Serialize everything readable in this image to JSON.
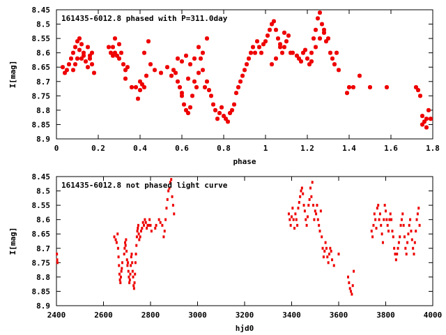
{
  "chart_data": [
    {
      "type": "scatter",
      "title": "161435-6012.8 phased with P=311.0day",
      "xlabel": "phase",
      "ylabel": "I[mag]",
      "xlim": [
        0,
        1.8
      ],
      "ylim": [
        8.9,
        8.45
      ],
      "xticks": [
        "0",
        "0.2",
        "0.4",
        "0.6",
        "0.8",
        "1",
        "1.2",
        "1.4",
        "1.6",
        "1.8"
      ],
      "yticks": [
        "8.45",
        "8.5",
        "8.55",
        "8.6",
        "8.65",
        "8.7",
        "8.75",
        "8.8",
        "8.85",
        "8.9"
      ],
      "marker": "star",
      "color": "#ee0000",
      "series": [
        {
          "x": [
            0.03,
            0.04,
            0.05,
            0.06,
            0.07,
            0.08,
            0.09,
            0.1,
            0.11,
            0.12,
            0.13,
            0.14,
            0.15,
            0.16,
            0.17,
            0.1,
            0.09,
            0.08,
            0.11,
            0.15,
            0.16,
            0.17,
            0.18,
            0.12,
            0.13,
            0.25,
            0.26,
            0.27,
            0.28,
            0.29,
            0.3,
            0.31,
            0.32,
            0.33,
            0.34,
            0.28,
            0.3,
            0.27,
            0.33,
            0.36,
            0.38,
            0.39,
            0.4,
            0.41,
            0.42,
            0.43,
            0.45,
            0.47,
            0.44,
            0.42,
            0.4,
            0.5,
            0.53,
            0.55,
            0.56,
            0.57,
            0.58,
            0.59,
            0.6,
            0.61,
            0.62,
            0.63,
            0.64,
            0.65,
            0.66,
            0.67,
            0.68,
            0.69,
            0.7,
            0.71,
            0.72,
            0.73,
            0.74,
            0.75,
            0.76,
            0.77,
            0.78,
            0.79,
            0.6,
            0.62,
            0.64,
            0.66,
            0.7,
            0.68,
            0.72,
            0.58,
            0.6,
            0.63,
            0.8,
            0.81,
            0.82,
            0.83,
            0.84,
            0.85,
            0.86,
            0.87,
            0.88,
            0.89,
            0.9,
            0.91,
            0.92,
            0.93,
            0.94,
            0.95,
            0.96,
            0.97,
            0.98,
            0.99,
            1.0,
            1.01,
            1.02,
            1.03,
            1.04,
            1.05,
            1.06,
            1.07,
            1.08,
            1.09,
            1.1,
            1.11,
            1.12,
            1.05,
            1.03,
            1.07,
            1.09,
            1.13,
            1.15,
            1.16,
            1.17,
            1.18,
            1.19,
            1.2,
            1.21,
            1.22,
            1.23,
            1.24,
            1.25,
            1.26,
            1.27,
            1.28,
            1.29,
            1.3,
            1.31,
            1.32,
            1.33,
            1.34,
            1.35,
            1.26,
            1.24,
            1.22,
            1.28,
            1.39,
            1.4,
            1.42,
            1.45,
            1.5,
            1.58,
            1.72,
            1.73,
            1.74,
            1.75,
            1.76,
            1.77,
            1.78,
            1.79,
            1.75,
            1.77
          ],
          "y": [
            8.65,
            8.67,
            8.66,
            8.64,
            8.62,
            8.6,
            8.58,
            8.56,
            8.55,
            8.57,
            8.6,
            8.63,
            8.65,
            8.62,
            8.6,
            8.62,
            8.64,
            8.66,
            8.59,
            8.58,
            8.61,
            8.64,
            8.67,
            8.62,
            8.61,
            8.58,
            8.6,
            8.58,
            8.6,
            8.61,
            8.62,
            8.6,
            8.64,
            8.66,
            8.65,
            8.55,
            8.57,
            8.61,
            8.69,
            8.72,
            8.72,
            8.76,
            8.73,
            8.71,
            8.72,
            8.68,
            8.64,
            8.66,
            8.56,
            8.6,
            8.7,
            8.67,
            8.65,
            8.68,
            8.66,
            8.67,
            8.7,
            8.72,
            8.75,
            8.78,
            8.8,
            8.81,
            8.79,
            8.75,
            8.7,
            8.72,
            8.67,
            8.62,
            8.66,
            8.72,
            8.7,
            8.73,
            8.75,
            8.78,
            8.8,
            8.83,
            8.81,
            8.79,
            8.63,
            8.61,
            8.64,
            8.62,
            8.6,
            8.58,
            8.55,
            8.62,
            8.74,
            8.69,
            8.82,
            8.83,
            8.84,
            8.81,
            8.8,
            8.78,
            8.74,
            8.72,
            8.7,
            8.68,
            8.66,
            8.64,
            8.62,
            8.6,
            8.58,
            8.6,
            8.56,
            8.58,
            8.6,
            8.57,
            8.56,
            8.54,
            8.52,
            8.5,
            8.49,
            8.52,
            8.55,
            8.58,
            8.6,
            8.58,
            8.56,
            8.54,
            8.6,
            8.62,
            8.64,
            8.57,
            8.53,
            8.6,
            8.61,
            8.62,
            8.63,
            8.6,
            8.59,
            8.62,
            8.64,
            8.63,
            8.55,
            8.52,
            8.48,
            8.46,
            8.5,
            8.53,
            8.56,
            8.55,
            8.6,
            8.62,
            8.64,
            8.6,
            8.66,
            8.55,
            8.58,
            8.6,
            8.52,
            8.74,
            8.72,
            8.72,
            8.68,
            8.72,
            8.72,
            8.72,
            8.73,
            8.75,
            8.82,
            8.84,
            8.86,
            8.8,
            8.83,
            8.85,
            8.83
          ]
        }
      ]
    },
    {
      "type": "scatter",
      "title": "161435-6012.8 not phased light curve",
      "xlabel": "hjd0",
      "ylabel": "I[mag]",
      "xlim": [
        2400,
        4000
      ],
      "ylim": [
        8.9,
        8.45
      ],
      "xticks": [
        "2400",
        "2600",
        "2800",
        "3000",
        "3200",
        "3400",
        "3600",
        "3800",
        "4000"
      ],
      "yticks": [
        "8.45",
        "8.5",
        "8.55",
        "8.6",
        "8.65",
        "8.7",
        "8.75",
        "8.8",
        "8.85",
        "8.9"
      ],
      "marker": "dot",
      "color": "#ee0000",
      "series": [
        {
          "x": [
            2402,
            2403,
            2404,
            2646,
            2652,
            2656,
            2660,
            2662,
            2664,
            2666,
            2668,
            2670,
            2672,
            2674,
            2676,
            2678,
            2680,
            2688,
            2690,
            2692,
            2694,
            2696,
            2698,
            2700,
            2702,
            2704,
            2706,
            2708,
            2710,
            2712,
            2714,
            2716,
            2718,
            2720,
            2722,
            2724,
            2726,
            2728,
            2730,
            2732,
            2734,
            2736,
            2738,
            2740,
            2742,
            2744,
            2746,
            2748,
            2750,
            2752,
            2756,
            2760,
            2764,
            2768,
            2772,
            2776,
            2780,
            2784,
            2788,
            2792,
            2796,
            2800,
            2804,
            2820,
            2824,
            2836,
            2842,
            2850,
            2856,
            2860,
            2864,
            2868,
            2872,
            2876,
            2880,
            2884,
            2888,
            2892,
            2896,
            2900,
            3388,
            3392,
            3396,
            3400,
            3404,
            3408,
            3412,
            3416,
            3420,
            3424,
            3428,
            3432,
            3436,
            3440,
            3444,
            3448,
            3452,
            3456,
            3460,
            3464,
            3468,
            3472,
            3476,
            3480,
            3484,
            3488,
            3492,
            3496,
            3500,
            3504,
            3508,
            3512,
            3516,
            3520,
            3524,
            3528,
            3532,
            3536,
            3540,
            3544,
            3548,
            3552,
            3556,
            3560,
            3564,
            3568,
            3572,
            3580,
            3600,
            3640,
            3644,
            3648,
            3652,
            3656,
            3660,
            3664,
            3740,
            3744,
            3748,
            3752,
            3756,
            3760,
            3764,
            3768,
            3772,
            3776,
            3780,
            3784,
            3788,
            3792,
            3796,
            3800,
            3804,
            3808,
            3812,
            3816,
            3820,
            3824,
            3828,
            3832,
            3836,
            3840,
            3844,
            3848,
            3852,
            3856,
            3860,
            3864,
            3868,
            3872,
            3876,
            3880,
            3884,
            3888,
            3892,
            3896,
            3900,
            3904,
            3908,
            3912,
            3916,
            3920,
            3924,
            3928,
            3932,
            3936,
            3940,
            3944
          ],
          "y": [
            8.72,
            8.74,
            8.75,
            8.66,
            8.67,
            8.68,
            8.65,
            8.7,
            8.73,
            8.76,
            8.79,
            8.81,
            8.82,
            8.8,
            8.78,
            8.77,
            8.75,
            8.72,
            8.7,
            8.68,
            8.69,
            8.67,
            8.71,
            8.74,
            8.76,
            8.75,
            8.78,
            8.8,
            8.82,
            8.81,
            8.79,
            8.76,
            8.73,
            8.72,
            8.75,
            8.78,
            8.8,
            8.83,
            8.84,
            8.82,
            8.79,
            8.75,
            8.72,
            8.69,
            8.66,
            8.64,
            8.63,
            8.62,
            8.65,
            8.67,
            8.66,
            8.64,
            8.63,
            8.61,
            8.62,
            8.6,
            8.61,
            8.63,
            8.62,
            8.62,
            8.6,
            8.62,
            8.64,
            8.63,
            8.62,
            8.6,
            8.61,
            8.62,
            8.66,
            8.64,
            8.6,
            8.56,
            8.53,
            8.5,
            8.49,
            8.47,
            8.46,
            8.52,
            8.55,
            8.58,
            8.58,
            8.6,
            8.62,
            8.59,
            8.56,
            8.6,
            8.63,
            8.58,
            8.6,
            8.62,
            8.56,
            8.54,
            8.52,
            8.5,
            8.49,
            8.51,
            8.55,
            8.57,
            8.6,
            8.62,
            8.59,
            8.55,
            8.53,
            8.49,
            8.52,
            8.47,
            8.55,
            8.6,
            8.57,
            8.58,
            8.55,
            8.6,
            8.62,
            8.64,
            8.57,
            8.66,
            8.7,
            8.73,
            8.71,
            8.68,
            8.7,
            8.73,
            8.75,
            8.72,
            8.7,
            8.71,
            8.74,
            8.76,
            8.72,
            8.8,
            8.82,
            8.84,
            8.85,
            8.86,
            8.83,
            8.78,
            8.64,
            8.66,
            8.62,
            8.58,
            8.6,
            8.63,
            8.56,
            8.55,
            8.6,
            8.58,
            8.62,
            8.65,
            8.68,
            8.6,
            8.55,
            8.57,
            8.6,
            8.62,
            8.64,
            8.6,
            8.58,
            8.6,
            8.64,
            8.66,
            8.7,
            8.72,
            8.74,
            8.72,
            8.7,
            8.68,
            8.66,
            8.62,
            8.6,
            8.58,
            8.62,
            8.66,
            8.7,
            8.72,
            8.68,
            8.65,
            8.62,
            8.6,
            8.64,
            8.67,
            8.7,
            8.72,
            8.68,
            8.64,
            8.6,
            8.58,
            8.56,
            8.62
          ]
        }
      ]
    }
  ]
}
